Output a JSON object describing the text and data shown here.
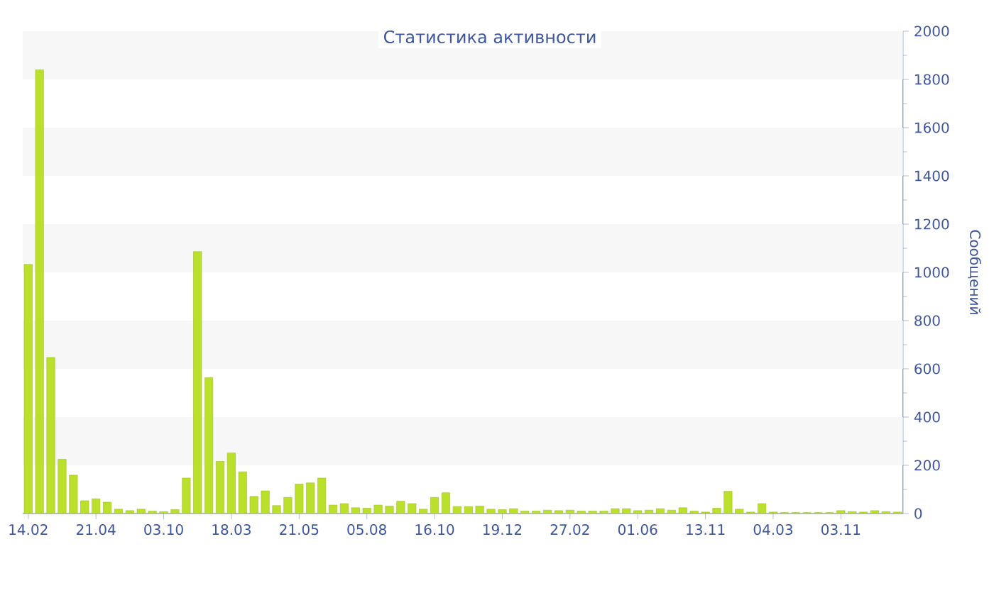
{
  "chart_data": {
    "type": "bar",
    "title": "Статистика активности",
    "ylabel": "Сообщений",
    "categories": [
      "14.02",
      null,
      null,
      null,
      null,
      null,
      "21.04",
      null,
      null,
      null,
      null,
      null,
      "03.10",
      null,
      null,
      null,
      null,
      null,
      "18.03",
      null,
      null,
      null,
      null,
      null,
      "21.05",
      null,
      null,
      null,
      null,
      null,
      "05.08",
      null,
      null,
      null,
      null,
      null,
      "16.10",
      null,
      null,
      null,
      null,
      null,
      "19.12",
      null,
      null,
      null,
      null,
      null,
      "27.02",
      null,
      null,
      null,
      null,
      null,
      "01.06",
      null,
      null,
      null,
      null,
      null,
      "13.11",
      null,
      null,
      null,
      null,
      null,
      "04.03",
      null,
      null,
      null,
      null,
      null,
      "03.11",
      null,
      null,
      null,
      null,
      null
    ],
    "values": [
      1033,
      1840,
      647,
      225,
      159,
      53,
      61,
      47,
      18,
      12,
      18,
      10,
      8,
      16,
      147,
      1086,
      563,
      216,
      251,
      173,
      71,
      94,
      33,
      67,
      122,
      127,
      147,
      35,
      41,
      24,
      22,
      35,
      31,
      51,
      41,
      18,
      67,
      86,
      29,
      29,
      31,
      18,
      16,
      20,
      10,
      10,
      14,
      12,
      14,
      10,
      10,
      10,
      20,
      20,
      12,
      14,
      20,
      14,
      24,
      10,
      6,
      22,
      92,
      18,
      6,
      41,
      6,
      4,
      4,
      4,
      4,
      4,
      12,
      8,
      6,
      12,
      8,
      6
    ],
    "color": "#bbe02c",
    "ylim": [
      0,
      2000
    ],
    "yticks": [
      0,
      200,
      400,
      600,
      800,
      1000,
      1200,
      1400,
      1600,
      1800,
      2000
    ],
    "bands": [
      {
        "axis": "y",
        "from": 200,
        "to": 400,
        "color": "#f7f7f7"
      },
      {
        "axis": "y",
        "from": 600,
        "to": 800,
        "color": "#f7f7f7"
      },
      {
        "axis": "y",
        "from": 1000,
        "to": 1200,
        "color": "#f7f7f7"
      },
      {
        "axis": "y",
        "from": 1400,
        "to": 1600,
        "color": "#f7f7f7"
      },
      {
        "axis": "y",
        "from": 1800,
        "to": 2000,
        "color": "#f7f7f7"
      }
    ]
  }
}
